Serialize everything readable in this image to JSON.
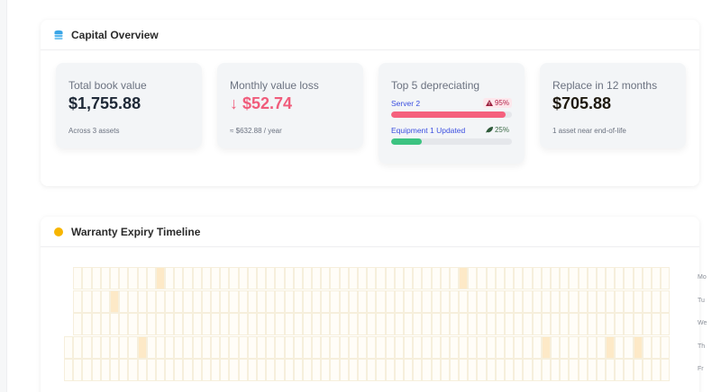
{
  "capital": {
    "title": "Capital Overview",
    "icon": "database-stack-icon",
    "cards": [
      {
        "label": "Total book value",
        "value": "$1,755.88",
        "note": "Across 3 assets"
      },
      {
        "label": "Monthly value loss",
        "arrow": "↓",
        "value": "$52.74",
        "note": "≈ $632.88 / year"
      },
      {
        "label": "Top 5 depreciating",
        "items": [
          {
            "name": "Server 2",
            "pct": "95%",
            "pct_value": 95,
            "status": "danger",
            "icon": "warning-icon",
            "bar_color": "#f5607d"
          },
          {
            "name": "Equipment 1 Updated",
            "pct": "25%",
            "pct_value": 25,
            "status": "ok",
            "icon": "leaf-icon",
            "bar_color": "#3cc381"
          }
        ]
      },
      {
        "label": "Replace in 12 months",
        "value": "$705.88",
        "note": "1 asset near end-of-life"
      }
    ]
  },
  "warranty": {
    "title": "Warranty Expiry Timeline",
    "icon": "sun-icon",
    "day_labels": [
      "Mo",
      "Tu",
      "We",
      "Th",
      "Fr"
    ],
    "columns": 66,
    "rows": [
      {
        "day": "Mo",
        "start_col": 1,
        "hot_cols": [
          10,
          43
        ]
      },
      {
        "day": "Tu",
        "start_col": 1,
        "hot_cols": [
          5
        ]
      },
      {
        "day": "We",
        "start_col": 1,
        "hot_cols": []
      },
      {
        "day": "Th",
        "start_col": 0,
        "hot_cols": [
          8,
          52,
          59,
          62
        ]
      },
      {
        "day": "Fr",
        "start_col": 0,
        "hot_cols": []
      }
    ]
  },
  "colors": {
    "accent_blue": "#3b4fe0",
    "loss_pink": "#f05c7b",
    "danger_bar": "#f5607d",
    "ok_bar": "#3cc381",
    "heat": "#fde9c7",
    "sun": "#f7b500"
  }
}
